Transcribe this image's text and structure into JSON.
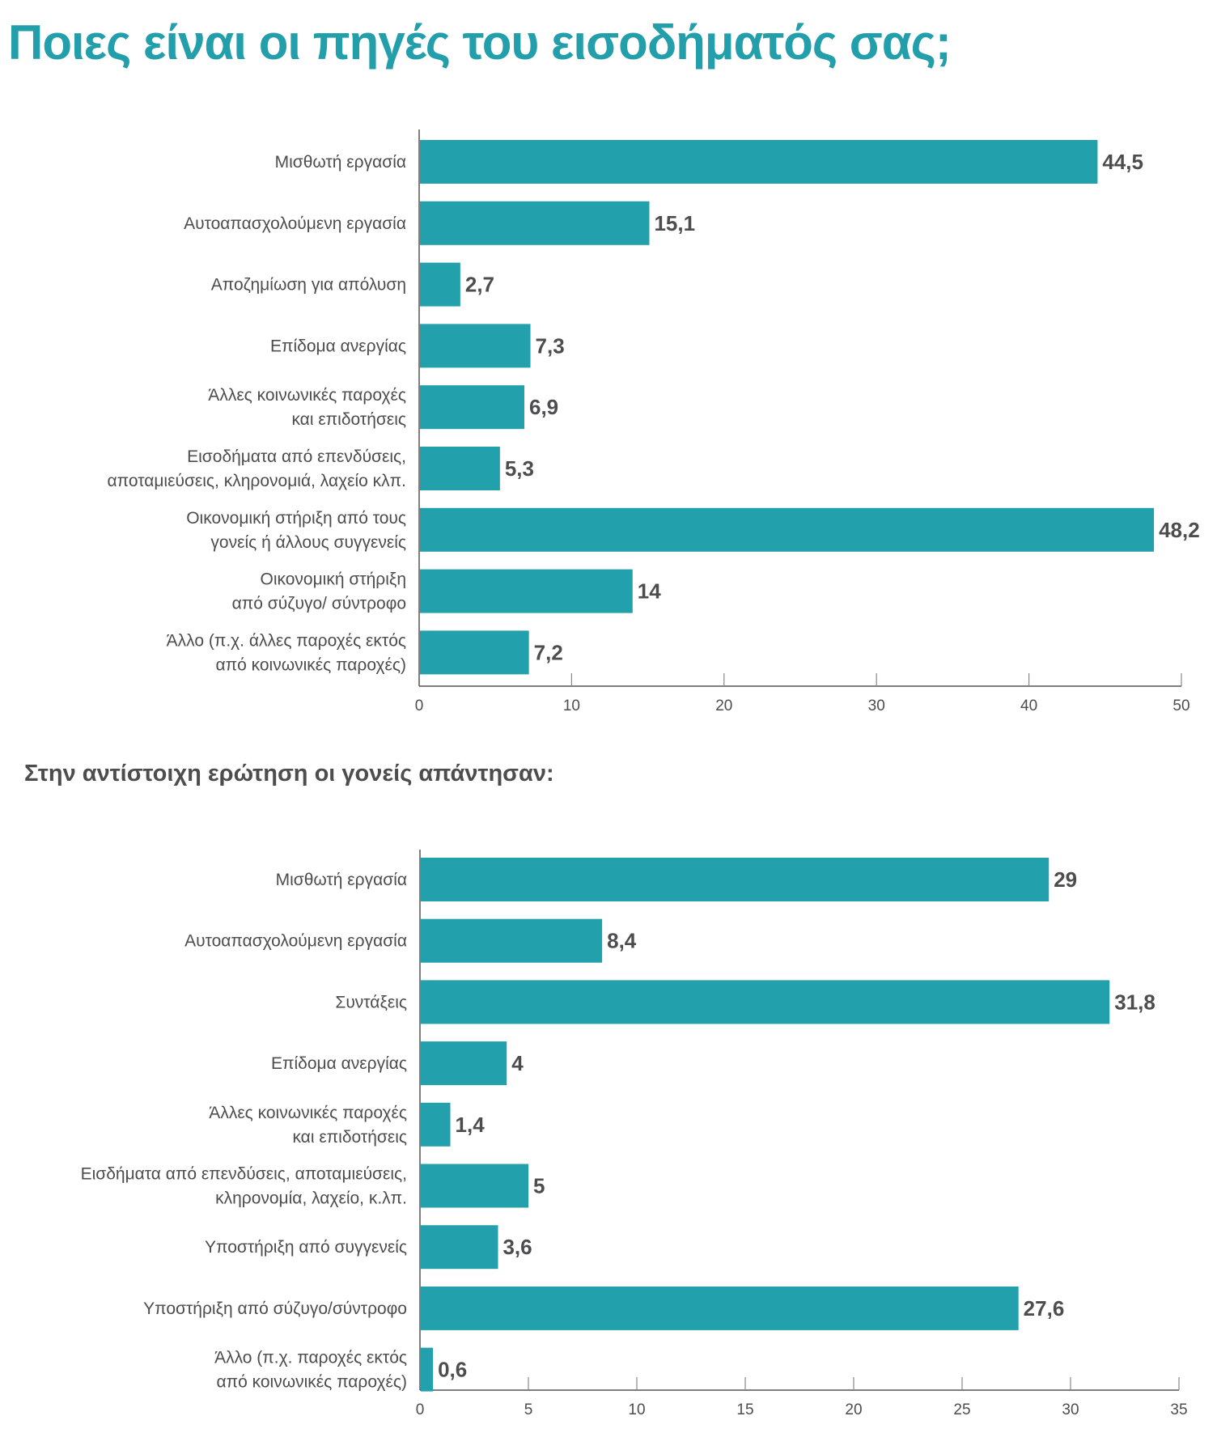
{
  "page": {
    "title": "Ποιες είναι οι πηγές του εισοδήματός σας;",
    "subtitle": "Στην αντίστοιχη ερώτηση οι γονείς απάντησαν:"
  },
  "colors": {
    "bar": "#22a0ab",
    "title": "#229fab",
    "text": "#4d4d4f",
    "axis": "#555555"
  },
  "chart_data": [
    {
      "type": "bar",
      "orientation": "horizontal",
      "title": "Ποιες είναι οι πηγές του εισοδήματός σας;",
      "xlabel": "",
      "ylabel": "",
      "xlim": [
        0,
        50
      ],
      "xticks": [
        0,
        10,
        20,
        30,
        40,
        50
      ],
      "grid": false,
      "categories": [
        [
          "Μισθωτή εργασία"
        ],
        [
          "Αυτοαπασχολούμενη εργασία"
        ],
        [
          "Αποζημίωση για απόλυση"
        ],
        [
          "Επίδομα ανεργίας"
        ],
        [
          "Άλλες κοινωνικές παροχές",
          "και επιδοτήσεις"
        ],
        [
          "Εισοδήματα από επενδύσεις,",
          "αποταμιεύσεις, κληρονομιά, λαχείο κλπ."
        ],
        [
          "Οικονομική στήριξη από τους",
          "γονείς ή άλλους συγγενείς"
        ],
        [
          "Οικονομική στήριξη",
          "από σύζυγο/ σύντροφο"
        ],
        [
          "Άλλο (π.χ. άλλες παροχές εκτός",
          "από κοινωνικές παροχές)"
        ]
      ],
      "values": [
        44.5,
        15.1,
        2.7,
        7.3,
        6.9,
        5.3,
        48.2,
        14,
        7.2
      ],
      "value_labels": [
        "44,5",
        "15,1",
        "2,7",
        "7,3",
        "6,9",
        "5,3",
        "48,2",
        "14",
        "7,2"
      ]
    },
    {
      "type": "bar",
      "orientation": "horizontal",
      "title": "Στην αντίστοιχη ερώτηση οι γονείς απάντησαν:",
      "xlabel": "",
      "ylabel": "",
      "xlim": [
        0,
        35
      ],
      "xticks": [
        0,
        5,
        10,
        15,
        20,
        25,
        30,
        35
      ],
      "grid": false,
      "categories": [
        [
          "Μισθωτή εργασία"
        ],
        [
          "Αυτοαπασχολούμενη εργασία"
        ],
        [
          "Συντάξεις"
        ],
        [
          "Επίδομα ανεργίας"
        ],
        [
          "Άλλες κοινωνικές παροχές",
          "και επιδοτήσεις"
        ],
        [
          "Εισδήματα από επενδύσεις, αποταμιεύσεις,",
          "κληρονομία, λαχείο, κ.λπ."
        ],
        [
          "Υποστήριξη από συγγενείς"
        ],
        [
          "Υποστήριξη από σύζυγο/σύντροφο"
        ],
        [
          "Άλλο (π.χ. παροχές εκτός",
          "από κοινωνικές παροχές)"
        ]
      ],
      "values": [
        29,
        8.4,
        31.8,
        4,
        1.4,
        5,
        3.6,
        27.6,
        0.6
      ],
      "value_labels": [
        "29",
        "8,4",
        "31,8",
        "4",
        "1,4",
        "5",
        "3,6",
        "27,6",
        "0,6"
      ]
    }
  ]
}
